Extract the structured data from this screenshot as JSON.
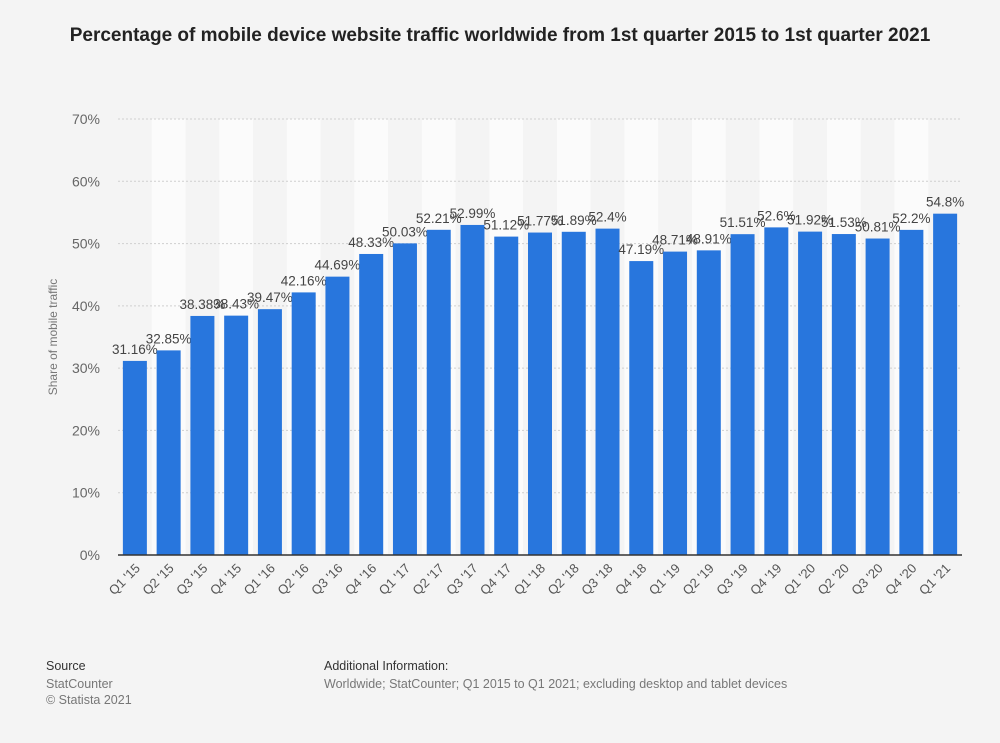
{
  "chart_data": {
    "type": "bar",
    "title": "Percentage of mobile device website traffic worldwide from 1st quarter 2015 to 1st quarter 2021",
    "xlabel": "",
    "ylabel": "Share of mobile traffic",
    "ylim": [
      0,
      70
    ],
    "yticks": [
      "0%",
      "10%",
      "20%",
      "30%",
      "40%",
      "50%",
      "60%",
      "70%"
    ],
    "grid": true,
    "bar_color": "#2876dd",
    "categories": [
      "Q1 '15",
      "Q2 '15",
      "Q3 '15",
      "Q4 '15",
      "Q1 '16",
      "Q2 '16",
      "Q3 '16",
      "Q4 '16",
      "Q1 '17",
      "Q2 '17",
      "Q3 '17",
      "Q4 '17",
      "Q1 '18",
      "Q2 '18",
      "Q3 '18",
      "Q4 '18",
      "Q1 '19",
      "Q2 '19",
      "Q3 '19",
      "Q4 '19",
      "Q1 '20",
      "Q2 '20",
      "Q3 '20",
      "Q4 '20",
      "Q1 '21"
    ],
    "values": [
      31.16,
      32.85,
      38.38,
      38.43,
      39.47,
      42.16,
      44.69,
      48.33,
      50.03,
      52.21,
      52.99,
      51.12,
      51.77,
      51.89,
      52.4,
      47.19,
      48.71,
      48.91,
      51.51,
      52.6,
      51.92,
      51.53,
      50.81,
      52.2,
      54.8
    ],
    "data_labels": [
      "31.16%",
      "32.85%",
      "38.38%",
      "38.43%",
      "39.47%",
      "42.16%",
      "44.69%",
      "48.33%",
      "50.03%",
      "52.21%",
      "52.99%",
      "51.12%",
      "51.77%",
      "51.89%",
      "52.4%",
      "47.19%",
      "48.71%",
      "48.91%",
      "51.51%",
      "52.6%",
      "51.92%",
      "51.53%",
      "50.81%",
      "52.2%",
      "54.8%"
    ]
  },
  "footer": {
    "source_heading": "Source",
    "source_name": "StatCounter",
    "copyright": "© Statista 2021",
    "info_heading": "Additional Information:",
    "info_text": "Worldwide; StatCounter; Q1 2015 to Q1 2021; excluding desktop and tablet devices"
  }
}
